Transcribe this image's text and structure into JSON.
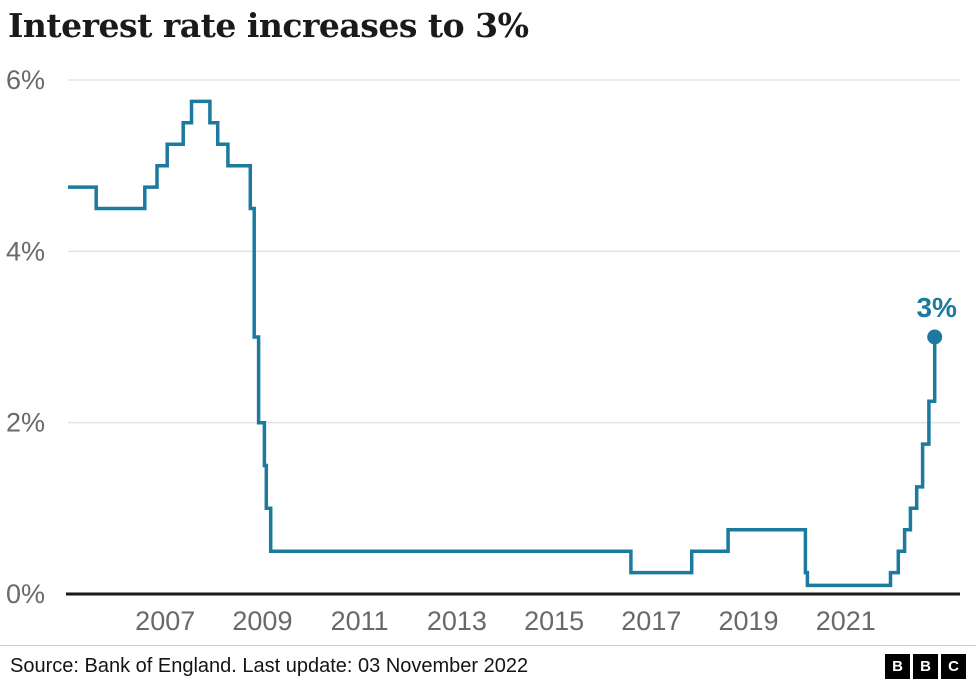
{
  "header": {
    "title": "Interest rate increases to 3%"
  },
  "footer": {
    "source": "Source: Bank of England. Last update: 03 November 2022",
    "bbc_letters": [
      "B",
      "B",
      "C"
    ]
  },
  "chart_data": {
    "type": "line",
    "step": true,
    "title": "Interest rate increases to 3%",
    "xlabel": "",
    "ylabel": "",
    "xlim": [
      2005.0,
      2023.35
    ],
    "ylim": [
      0,
      6
    ],
    "x_ticks": [
      2007,
      2009,
      2011,
      2013,
      2015,
      2017,
      2019,
      2021
    ],
    "y_ticks": [
      0,
      2,
      4,
      6
    ],
    "y_tick_labels": [
      "0%",
      "2%",
      "4%",
      "6%"
    ],
    "grid": true,
    "legend": "none",
    "line_color": "#1b7a9e",
    "grid_color": "#e3e3e3",
    "axis_color": "#1a1a1a",
    "tick_color": "#696969",
    "end_label": "3%",
    "series": [
      {
        "name": "Bank of England interest rate (%)",
        "points": [
          [
            2005.0,
            4.75
          ],
          [
            2005.58,
            4.5
          ],
          [
            2006.58,
            4.75
          ],
          [
            2006.83,
            5.0
          ],
          [
            2007.04,
            5.25
          ],
          [
            2007.37,
            5.5
          ],
          [
            2007.54,
            5.75
          ],
          [
            2007.92,
            5.5
          ],
          [
            2008.08,
            5.25
          ],
          [
            2008.29,
            5.0
          ],
          [
            2008.75,
            4.5
          ],
          [
            2008.83,
            3.0
          ],
          [
            2008.92,
            2.0
          ],
          [
            2009.04,
            1.5
          ],
          [
            2009.08,
            1.0
          ],
          [
            2009.17,
            0.5
          ],
          [
            2016.58,
            0.25
          ],
          [
            2017.83,
            0.5
          ],
          [
            2018.58,
            0.75
          ],
          [
            2020.17,
            0.25
          ],
          [
            2020.21,
            0.1
          ],
          [
            2021.92,
            0.25
          ],
          [
            2022.08,
            0.5
          ],
          [
            2022.21,
            0.75
          ],
          [
            2022.33,
            1.0
          ],
          [
            2022.46,
            1.25
          ],
          [
            2022.58,
            1.75
          ],
          [
            2022.71,
            2.25
          ],
          [
            2022.83,
            3.0
          ]
        ]
      }
    ]
  }
}
